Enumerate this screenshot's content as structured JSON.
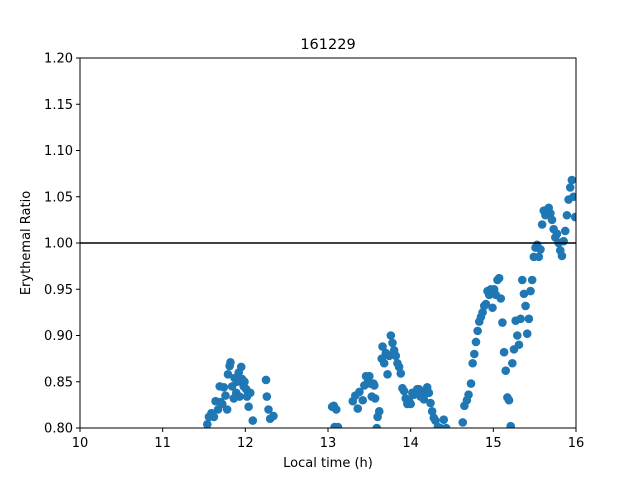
{
  "chart_data": {
    "type": "scatter",
    "title": "161229",
    "xlabel": "Local time (h)",
    "ylabel": "Erythemal Ratio",
    "xlim": [
      10,
      16
    ],
    "ylim": [
      0.8,
      1.2
    ],
    "xticks": [
      "10",
      "11",
      "12",
      "13",
      "14",
      "15",
      "16"
    ],
    "yticks": [
      "0.80",
      "0.85",
      "0.90",
      "0.95",
      "1.00",
      "1.05",
      "1.10",
      "1.15",
      "1.20"
    ],
    "reference_line": {
      "y": 1.0,
      "color": "#000000"
    },
    "grid": false,
    "series": [
      {
        "name": "Erythemal Ratio",
        "color": "#1f77b4",
        "points": [
          [
            11.54,
            0.804
          ],
          [
            11.56,
            0.812
          ],
          [
            11.59,
            0.816
          ],
          [
            11.62,
            0.812
          ],
          [
            11.64,
            0.829
          ],
          [
            11.67,
            0.82
          ],
          [
            11.69,
            0.845
          ],
          [
            11.7,
            0.828
          ],
          [
            11.72,
            0.826
          ],
          [
            11.74,
            0.844
          ],
          [
            11.76,
            0.835
          ],
          [
            11.78,
            0.82
          ],
          [
            11.79,
            0.858
          ],
          [
            11.81,
            0.867
          ],
          [
            11.82,
            0.871
          ],
          [
            11.84,
            0.845
          ],
          [
            11.86,
            0.832
          ],
          [
            11.87,
            0.854
          ],
          [
            11.89,
            0.838
          ],
          [
            11.9,
            0.85
          ],
          [
            11.92,
            0.86
          ],
          [
            11.93,
            0.834
          ],
          [
            11.95,
            0.866
          ],
          [
            11.96,
            0.853
          ],
          [
            11.98,
            0.845
          ],
          [
            11.99,
            0.85
          ],
          [
            12.01,
            0.842
          ],
          [
            12.02,
            0.834
          ],
          [
            12.04,
            0.823
          ],
          [
            12.06,
            0.838
          ],
          [
            12.09,
            0.808
          ],
          [
            12.25,
            0.852
          ],
          [
            12.26,
            0.834
          ],
          [
            12.28,
            0.82
          ],
          [
            12.3,
            0.81
          ],
          [
            12.34,
            0.813
          ],
          [
            13.05,
            0.823
          ],
          [
            13.07,
            0.824
          ],
          [
            13.08,
            0.801
          ],
          [
            13.1,
            0.82
          ],
          [
            13.12,
            0.801
          ],
          [
            13.3,
            0.829
          ],
          [
            13.33,
            0.835
          ],
          [
            13.36,
            0.821
          ],
          [
            13.38,
            0.839
          ],
          [
            13.42,
            0.83
          ],
          [
            13.44,
            0.846
          ],
          [
            13.46,
            0.856
          ],
          [
            13.48,
            0.849
          ],
          [
            13.5,
            0.856
          ],
          [
            13.51,
            0.848
          ],
          [
            13.53,
            0.834
          ],
          [
            13.55,
            0.848
          ],
          [
            13.56,
            0.846
          ],
          [
            13.57,
            0.832
          ],
          [
            13.59,
            0.8
          ],
          [
            13.6,
            0.812
          ],
          [
            13.62,
            0.818
          ],
          [
            13.65,
            0.875
          ],
          [
            13.66,
            0.888
          ],
          [
            13.68,
            0.87
          ],
          [
            13.7,
            0.881
          ],
          [
            13.72,
            0.858
          ],
          [
            13.74,
            0.878
          ],
          [
            13.76,
            0.9
          ],
          [
            13.78,
            0.892
          ],
          [
            13.8,
            0.884
          ],
          [
            13.82,
            0.878
          ],
          [
            13.84,
            0.87
          ],
          [
            13.86,
            0.866
          ],
          [
            13.88,
            0.859
          ],
          [
            13.9,
            0.843
          ],
          [
            13.92,
            0.84
          ],
          [
            13.94,
            0.832
          ],
          [
            13.96,
            0.826
          ],
          [
            13.98,
            0.83
          ],
          [
            14.0,
            0.826
          ],
          [
            14.02,
            0.838
          ],
          [
            14.04,
            0.836
          ],
          [
            14.06,
            0.838
          ],
          [
            14.08,
            0.842
          ],
          [
            14.1,
            0.842
          ],
          [
            14.12,
            0.834
          ],
          [
            14.14,
            0.836
          ],
          [
            14.16,
            0.831
          ],
          [
            14.18,
            0.84
          ],
          [
            14.2,
            0.844
          ],
          [
            14.22,
            0.838
          ],
          [
            14.24,
            0.827
          ],
          [
            14.26,
            0.818
          ],
          [
            14.28,
            0.811
          ],
          [
            14.3,
            0.808
          ],
          [
            14.33,
            0.801
          ],
          [
            14.36,
            0.8
          ],
          [
            14.4,
            0.809
          ],
          [
            14.43,
            0.8
          ],
          [
            14.63,
            0.806
          ],
          [
            14.65,
            0.824
          ],
          [
            14.68,
            0.83
          ],
          [
            14.7,
            0.836
          ],
          [
            14.73,
            0.848
          ],
          [
            14.75,
            0.87
          ],
          [
            14.77,
            0.88
          ],
          [
            14.79,
            0.893
          ],
          [
            14.81,
            0.905
          ],
          [
            14.83,
            0.915
          ],
          [
            14.85,
            0.92
          ],
          [
            14.87,
            0.925
          ],
          [
            14.89,
            0.932
          ],
          [
            14.91,
            0.934
          ],
          [
            14.93,
            0.948
          ],
          [
            14.95,
            0.944
          ],
          [
            14.97,
            0.95
          ],
          [
            14.99,
            0.93
          ],
          [
            15.01,
            0.95
          ],
          [
            15.03,
            0.944
          ],
          [
            15.05,
            0.96
          ],
          [
            15.07,
            0.962
          ],
          [
            15.09,
            0.94
          ],
          [
            15.11,
            0.914
          ],
          [
            15.13,
            0.882
          ],
          [
            15.15,
            0.862
          ],
          [
            15.17,
            0.833
          ],
          [
            15.19,
            0.83
          ],
          [
            15.21,
            0.802
          ],
          [
            15.23,
            0.87
          ],
          [
            15.25,
            0.885
          ],
          [
            15.27,
            0.916
          ],
          [
            15.29,
            0.9
          ],
          [
            15.31,
            0.89
          ],
          [
            15.33,
            0.918
          ],
          [
            15.35,
            0.96
          ],
          [
            15.37,
            0.945
          ],
          [
            15.39,
            0.932
          ],
          [
            15.41,
            0.902
          ],
          [
            15.43,
            0.918
          ],
          [
            15.45,
            0.948
          ],
          [
            15.47,
            0.96
          ],
          [
            15.49,
            0.985
          ],
          [
            15.51,
            0.995
          ],
          [
            15.53,
            0.998
          ],
          [
            15.55,
            0.985
          ],
          [
            15.57,
            0.993
          ],
          [
            15.59,
            1.02
          ],
          [
            15.61,
            1.035
          ],
          [
            15.63,
            1.03
          ],
          [
            15.65,
            1.036
          ],
          [
            15.67,
            1.038
          ],
          [
            15.69,
            1.032
          ],
          [
            15.71,
            1.025
          ],
          [
            15.73,
            1.015
          ],
          [
            15.75,
            1.006
          ],
          [
            15.77,
            1.01
          ],
          [
            15.79,
            1.0
          ],
          [
            15.81,
            0.992
          ],
          [
            15.83,
            0.986
          ],
          [
            15.85,
            1.002
          ],
          [
            15.87,
            1.013
          ],
          [
            15.89,
            1.03
          ],
          [
            15.91,
            1.047
          ],
          [
            15.93,
            1.06
          ],
          [
            15.95,
            1.068
          ],
          [
            15.97,
            1.05
          ],
          [
            15.99,
            1.028
          ]
        ]
      }
    ]
  }
}
